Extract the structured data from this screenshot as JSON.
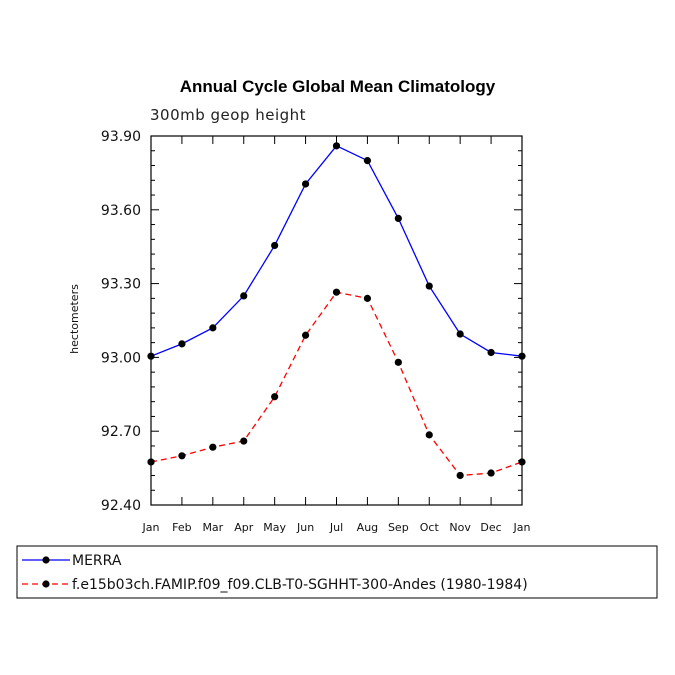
{
  "chart_data": {
    "type": "line",
    "title": "Annual Cycle Global Mean Climatology",
    "subtitle": "300mb geop height",
    "xlabel": "",
    "ylabel": "hectometers",
    "categories": [
      "Jan",
      "Feb",
      "Mar",
      "Apr",
      "May",
      "Jun",
      "Jul",
      "Aug",
      "Sep",
      "Oct",
      "Nov",
      "Dec",
      "Jan"
    ],
    "ylim": [
      92.4,
      93.9
    ],
    "yticks": [
      92.4,
      92.7,
      93.0,
      93.3,
      93.6,
      93.9
    ],
    "ytick_labels": [
      "92.40",
      "92.70",
      "93.00",
      "93.30",
      "93.60",
      "93.90"
    ],
    "series": [
      {
        "name": "MERRA",
        "color": "#0000ff",
        "dash": "solid",
        "values": [
          93.005,
          93.055,
          93.12,
          93.25,
          93.455,
          93.705,
          93.86,
          93.8,
          93.565,
          93.29,
          93.095,
          93.02,
          93.005
        ]
      },
      {
        "name": "f.e15b03ch.FAMIP.f09_f09.CLB-T0-SGHHT-300-Andes (1980-1984)",
        "color": "#ff0000",
        "dash": "dashed",
        "values": [
          92.575,
          92.6,
          92.635,
          92.66,
          92.84,
          93.09,
          93.265,
          93.24,
          92.98,
          92.685,
          92.52,
          92.53,
          92.575
        ]
      }
    ],
    "legend": {
      "position": "bottom",
      "entries": [
        "MERRA",
        "f.e15b03ch.FAMIP.f09_f09.CLB-T0-SGHHT-300-Andes (1980-1984)"
      ]
    }
  }
}
